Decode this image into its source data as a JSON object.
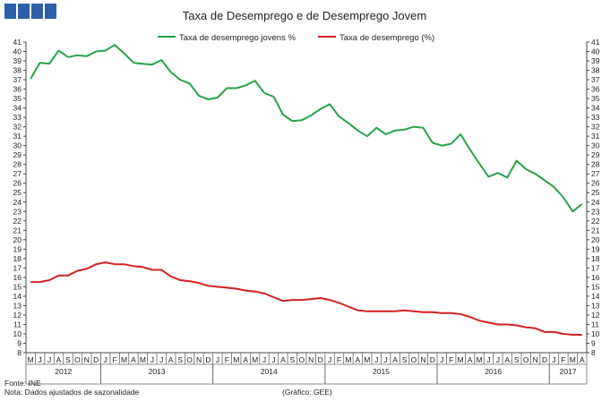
{
  "logo": {
    "color": "#2d5fa8",
    "blocks": 4
  },
  "chart_data": {
    "type": "line",
    "title": "Taxa de Desemprego e de Desemprego Jovem",
    "xlabel": "",
    "ylabel": "",
    "ylim": [
      8,
      41
    ],
    "yticks": [
      8,
      9,
      10,
      11,
      12,
      13,
      14,
      15,
      16,
      17,
      18,
      19,
      20,
      21,
      22,
      23,
      24,
      25,
      26,
      27,
      28,
      29,
      30,
      31,
      32,
      33,
      34,
      35,
      36,
      37,
      38,
      39,
      40,
      41
    ],
    "x": [
      "M",
      "J",
      "J",
      "A",
      "S",
      "O",
      "N",
      "D",
      "J",
      "F",
      "M",
      "A",
      "M",
      "J",
      "J",
      "A",
      "S",
      "O",
      "N",
      "D",
      "J",
      "F",
      "M",
      "A",
      "M",
      "J",
      "J",
      "A",
      "S",
      "O",
      "N",
      "D",
      "J",
      "F",
      "M",
      "A",
      "M",
      "J",
      "J",
      "A",
      "S",
      "O",
      "N",
      "D",
      "J",
      "F",
      "M",
      "A",
      "M",
      "J",
      "J",
      "A",
      "S",
      "O",
      "N",
      "D",
      "J",
      "F",
      "M",
      "A"
    ],
    "years": [
      {
        "label": "2012",
        "start": 0,
        "end": 7
      },
      {
        "label": "2013",
        "start": 8,
        "end": 19
      },
      {
        "label": "2014",
        "start": 20,
        "end": 31
      },
      {
        "label": "2015",
        "start": 32,
        "end": 43
      },
      {
        "label": "2016",
        "start": 44,
        "end": 55
      },
      {
        "label": "2017",
        "start": 56,
        "end": 59
      }
    ],
    "series": [
      {
        "name": "Taxa de desemprego jovens %",
        "color": "#27a24a",
        "values": [
          37.1,
          38.8,
          38.7,
          40.1,
          39.4,
          39.6,
          39.5,
          40.0,
          40.1,
          40.7,
          39.8,
          38.8,
          38.7,
          38.6,
          39.1,
          37.8,
          37.0,
          36.6,
          35.3,
          34.9,
          35.1,
          36.1,
          36.1,
          36.4,
          36.9,
          35.6,
          35.2,
          33.3,
          32.6,
          32.7,
          33.2,
          33.9,
          34.4,
          33.1,
          32.4,
          31.6,
          31.0,
          31.9,
          31.2,
          31.6,
          31.7,
          32.0,
          31.9,
          30.3,
          30.0,
          30.2,
          31.2,
          29.6,
          28.1,
          26.7,
          27.1,
          26.6,
          28.4,
          27.5,
          27.0,
          26.3,
          25.6,
          24.5,
          23.0,
          23.8
        ],
        "legend_position": "top-left"
      },
      {
        "name": "Taxa de desemprego (%)",
        "color": "#d42020",
        "values": [
          15.5,
          15.5,
          15.7,
          16.2,
          16.2,
          16.7,
          16.9,
          17.4,
          17.6,
          17.4,
          17.4,
          17.2,
          17.1,
          16.8,
          16.8,
          16.1,
          15.7,
          15.6,
          15.4,
          15.1,
          15.0,
          14.9,
          14.8,
          14.6,
          14.5,
          14.3,
          13.9,
          13.5,
          13.6,
          13.6,
          13.7,
          13.8,
          13.6,
          13.3,
          12.9,
          12.5,
          12.4,
          12.4,
          12.4,
          12.4,
          12.5,
          12.4,
          12.3,
          12.3,
          12.2,
          12.2,
          12.1,
          11.8,
          11.4,
          11.2,
          11.0,
          11.0,
          10.9,
          10.7,
          10.6,
          10.2,
          10.2,
          10.0,
          9.9,
          9.9
        ],
        "legend_position": "top-center"
      }
    ]
  },
  "footer": {
    "source": "Fonte: INE",
    "note": "Nota: Dados ajustados de sazonalidade",
    "credit": "(Gráfico: GEE)"
  }
}
